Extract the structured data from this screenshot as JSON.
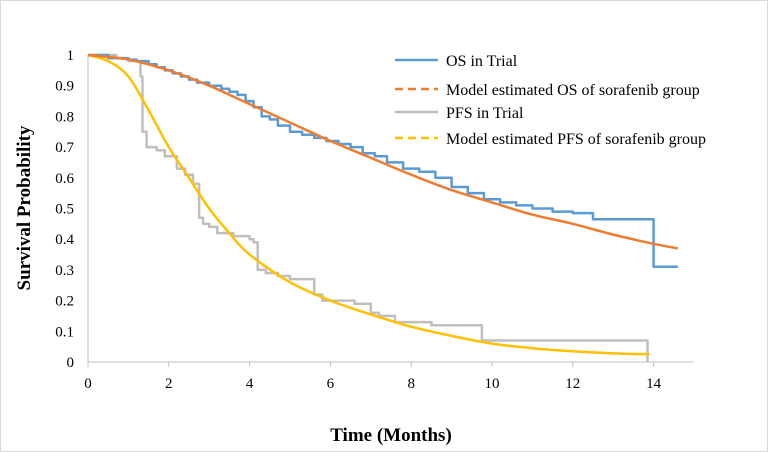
{
  "chart_data": {
    "type": "line",
    "title": "",
    "xlabel": "Time (Months)",
    "ylabel": "Survival Probability",
    "xlim": [
      0,
      15
    ],
    "ylim": [
      0,
      1
    ],
    "x_ticks": [
      "0",
      "2",
      "4",
      "6",
      "8",
      "10",
      "12",
      "14"
    ],
    "y_ticks": [
      "0",
      "0.1",
      "0.2",
      "0.3",
      "0.4",
      "0.5",
      "0.6",
      "0.7",
      "0.8",
      "0.9",
      "1"
    ],
    "grid": false,
    "legend_position": "top-right",
    "series": [
      {
        "name": "OS in Trial",
        "color": "#5b9bd5",
        "style": "step",
        "x": [
          0,
          0.5,
          1.0,
          1.2,
          1.5,
          1.7,
          1.9,
          2.1,
          2.3,
          2.5,
          2.7,
          3.0,
          3.3,
          3.5,
          3.7,
          3.9,
          4.1,
          4.3,
          4.5,
          4.7,
          5.0,
          5.3,
          5.6,
          5.9,
          6.2,
          6.5,
          6.8,
          7.1,
          7.4,
          7.8,
          8.2,
          8.6,
          9.0,
          9.4,
          9.8,
          10.2,
          10.6,
          11.0,
          11.5,
          12.0,
          12.5,
          13.0,
          13.5,
          13.9,
          14.0,
          14.6
        ],
        "y": [
          1,
          0.99,
          0.985,
          0.98,
          0.97,
          0.96,
          0.95,
          0.94,
          0.93,
          0.92,
          0.91,
          0.9,
          0.89,
          0.88,
          0.87,
          0.85,
          0.83,
          0.8,
          0.79,
          0.77,
          0.75,
          0.74,
          0.73,
          0.72,
          0.71,
          0.7,
          0.68,
          0.67,
          0.65,
          0.63,
          0.62,
          0.6,
          0.57,
          0.55,
          0.53,
          0.52,
          0.51,
          0.5,
          0.49,
          0.485,
          0.465,
          0.465,
          0.465,
          0.465,
          0.31,
          0.31
        ]
      },
      {
        "name": "Model estimated OS of sorafenib group",
        "color": "#ed7d31",
        "style": "smooth",
        "x": [
          0,
          1,
          2,
          3,
          4,
          5,
          6,
          7,
          8,
          9,
          10,
          11,
          12,
          13,
          14,
          14.6
        ],
        "y": [
          1,
          0.985,
          0.95,
          0.9,
          0.84,
          0.78,
          0.72,
          0.665,
          0.61,
          0.56,
          0.52,
          0.48,
          0.45,
          0.415,
          0.385,
          0.37
        ]
      },
      {
        "name": "PFS in Trial",
        "color": "#bfbfbf",
        "style": "step",
        "x": [
          0,
          0.7,
          1.0,
          1.3,
          1.35,
          1.45,
          1.7,
          1.9,
          2.2,
          2.4,
          2.6,
          2.75,
          2.85,
          3.0,
          3.2,
          3.6,
          4.0,
          4.1,
          4.2,
          4.4,
          4.7,
          5.0,
          5.4,
          5.6,
          5.8,
          6.2,
          6.6,
          7.0,
          7.2,
          7.6,
          8.0,
          8.5,
          9.0,
          9.5,
          9.75,
          10.2,
          11.0,
          12.0,
          13.0,
          13.8,
          13.85
        ],
        "y": [
          1,
          0.99,
          0.98,
          0.93,
          0.75,
          0.7,
          0.69,
          0.67,
          0.63,
          0.61,
          0.58,
          0.47,
          0.45,
          0.44,
          0.42,
          0.41,
          0.4,
          0.39,
          0.3,
          0.29,
          0.28,
          0.27,
          0.27,
          0.22,
          0.2,
          0.2,
          0.19,
          0.16,
          0.15,
          0.13,
          0.13,
          0.12,
          0.12,
          0.12,
          0.07,
          0.07,
          0.07,
          0.07,
          0.07,
          0.07,
          0
        ]
      },
      {
        "name": "Model estimated PFS of sorafenib group",
        "color": "#ffc000",
        "style": "smooth",
        "x": [
          0,
          0.5,
          1.0,
          1.5,
          2.0,
          2.5,
          3.0,
          3.5,
          4.0,
          5.0,
          6.0,
          7.0,
          8.0,
          9.0,
          10.0,
          11.0,
          12.0,
          13.0,
          13.9
        ],
        "y": [
          1,
          0.98,
          0.93,
          0.82,
          0.7,
          0.6,
          0.5,
          0.42,
          0.35,
          0.26,
          0.2,
          0.155,
          0.115,
          0.085,
          0.06,
          0.045,
          0.035,
          0.028,
          0.025
        ]
      }
    ]
  }
}
